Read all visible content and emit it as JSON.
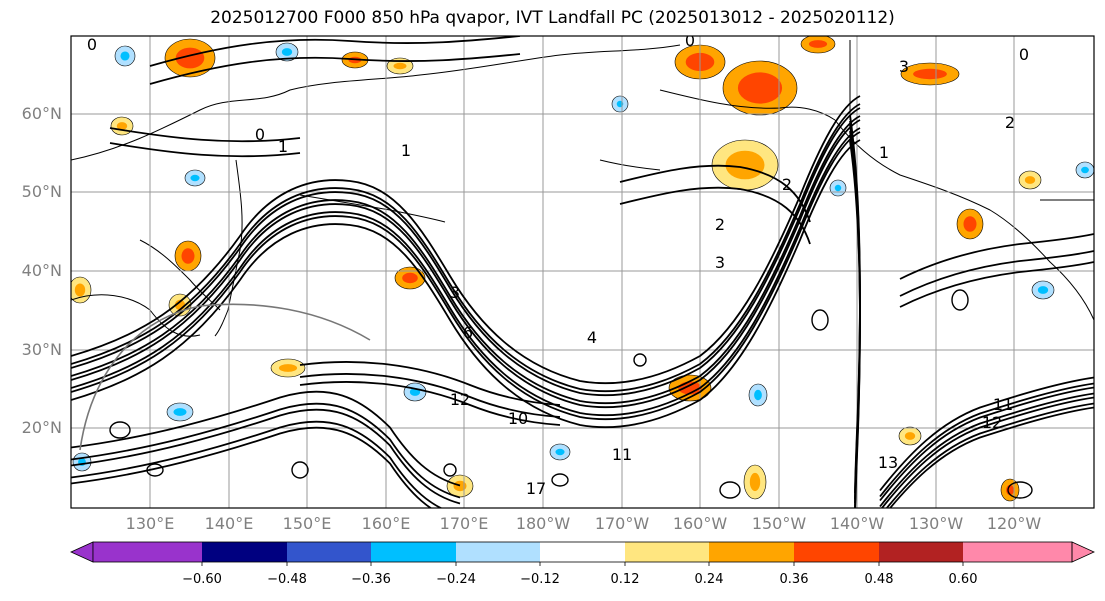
{
  "title": "2025012700 F000 850 hPa qvapor, IVT Landfall PC (2025013012 - 2025020112)",
  "lat_labels": [
    "60°N",
    "50°N",
    "40°N",
    "30°N",
    "20°N"
  ],
  "lon_labels": [
    "130°E",
    "140°E",
    "150°E",
    "160°E",
    "170°E",
    "180°W",
    "170°W",
    "160°W",
    "150°W",
    "140°W",
    "130°W",
    "120°W"
  ],
  "colorbar": {
    "colors": [
      "#9933cc",
      "#000080",
      "#3355cc",
      "#00bfff",
      "#b0e0ff",
      "#ffffff",
      "#ffe680",
      "#ffa500",
      "#ff4500",
      "#b22222",
      "#ff88aa"
    ],
    "tick_labels": [
      "−0.60",
      "−0.48",
      "−0.36",
      "−0.24",
      "−0.12",
      "0.12",
      "0.24",
      "0.36",
      "0.48",
      "0.60"
    ]
  },
  "contour_labels": [
    "0",
    "0",
    "1",
    "1",
    "2",
    "2",
    "3",
    "3",
    "4",
    "6",
    "10",
    "11",
    "11",
    "12",
    "12",
    "13",
    "17",
    "1",
    "2",
    "3",
    "0",
    "0"
  ],
  "chart_data": {
    "type": "heatmap",
    "title": "2025012700 F000 850 hPa qvapor, IVT Landfall PC (2025013012 - 2025020112)",
    "lat_ticks": [
      "60°N",
      "50°N",
      "40°N",
      "30°N",
      "20°N"
    ],
    "lon_ticks": [
      "130°E",
      "140°E",
      "150°E",
      "160°E",
      "170°E",
      "180°W",
      "170°W",
      "160°W",
      "150°W",
      "140°W",
      "130°W",
      "120°W"
    ],
    "colorbar_levels": [
      -0.6,
      -0.48,
      -0.36,
      -0.24,
      -0.12,
      0.12,
      0.24,
      0.36,
      0.48,
      0.6
    ],
    "grid": true
  }
}
